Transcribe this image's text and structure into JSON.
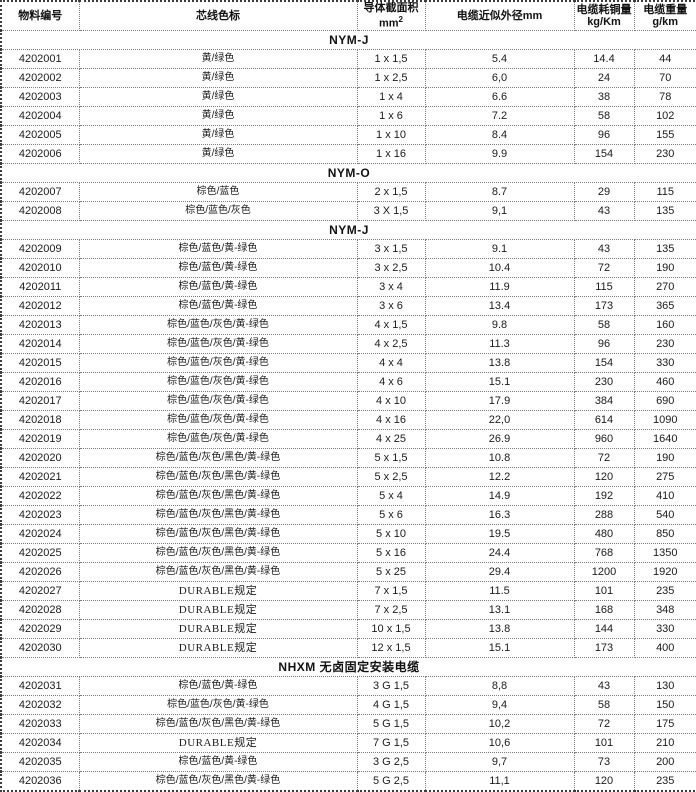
{
  "colors": {
    "background": "#ffffff",
    "text": "#1b1b1b",
    "border_outer": "#3d3d3d",
    "border_inner": "#7d7d7d"
  },
  "table": {
    "columns": [
      {
        "label": "物料编号"
      },
      {
        "label": "芯线色标"
      },
      {
        "label": "导体截面积",
        "label2": "mm",
        "sup": "2"
      },
      {
        "label": "电缆近似外径mm"
      },
      {
        "label": "电缆耗铜量",
        "label2": "kg/Km"
      },
      {
        "label": "电缆重量",
        "label2": "g/km"
      }
    ],
    "column_names": [
      "material-number",
      "core-color-code",
      "conductor-cross-section",
      "outer-diameter",
      "copper-consumption",
      "cable-weight"
    ],
    "sections": [
      {
        "title": "NYM-J",
        "rows": [
          [
            "4202001",
            "黄/绿色",
            "1 x 1,5",
            "5.4",
            "14.4",
            "44"
          ],
          [
            "4202002",
            "黄/绿色",
            "1 x 2,5",
            "6,0",
            "24",
            "70"
          ],
          [
            "4202003",
            "黄/绿色",
            "1 x 4",
            "6.6",
            "38",
            "78"
          ],
          [
            "4202004",
            "黄/绿色",
            "1 x 6",
            "7.2",
            "58",
            "102"
          ],
          [
            "4202005",
            "黄/绿色",
            "1 x 10",
            "8.4",
            "96",
            "155"
          ],
          [
            "4202006",
            "黄/绿色",
            "1 x 16",
            "9.9",
            "154",
            "230"
          ]
        ]
      },
      {
        "title": "NYM-O",
        "rows": [
          [
            "4202007",
            "棕色/蓝色",
            "2 x 1,5",
            "8.7",
            "29",
            "115"
          ],
          [
            "4202008",
            "棕色/蓝色/灰色",
            "3 X 1,5",
            "9,1",
            "43",
            "135"
          ]
        ]
      },
      {
        "title": "NYM-J",
        "rows": [
          [
            "4202009",
            "棕色/蓝色/黄-绿色",
            "3 x 1,5",
            "9.1",
            "43",
            "135"
          ],
          [
            "4202010",
            "棕色/蓝色/黄-绿色",
            "3 x 2,5",
            "10.4",
            "72",
            "190"
          ],
          [
            "4202011",
            "棕色/蓝色/黄-绿色",
            "3 x 4",
            "11.9",
            "115",
            "270"
          ],
          [
            "4202012",
            "棕色/蓝色/黄-绿色",
            "3 x 6",
            "13.4",
            "173",
            "365"
          ],
          [
            "4202013",
            "棕色/蓝色/灰色/黄-绿色",
            "4 x 1,5",
            "9.8",
            "58",
            "160"
          ],
          [
            "4202014",
            "棕色/蓝色/灰色/黄-绿色",
            "4 x 2,5",
            "11.3",
            "96",
            "230"
          ],
          [
            "4202015",
            "棕色/蓝色/灰色/黄-绿色",
            "4 x 4",
            "13.8",
            "154",
            "330"
          ],
          [
            "4202016",
            "棕色/蓝色/灰色/黄-绿色",
            "4 x 6",
            "15.1",
            "230",
            "460"
          ],
          [
            "4202017",
            "棕色/蓝色/灰色/黄-绿色",
            "4 x 10",
            "17.9",
            "384",
            "690"
          ],
          [
            "4202018",
            "棕色/蓝色/灰色/黄-绿色",
            "4 x 16",
            "22,0",
            "614",
            "1090"
          ],
          [
            "4202019",
            "棕色/蓝色/灰色/黄-绿色",
            "4 x 25",
            "26.9",
            "960",
            "1640"
          ],
          [
            "4202020",
            "棕色/蓝色/灰色/黑色/黄-绿色",
            "5 x 1,5",
            "10.8",
            "72",
            "190"
          ],
          [
            "4202021",
            "棕色/蓝色/灰色/黑色/黄-绿色",
            "5 x 2,5",
            "12.2",
            "120",
            "275"
          ],
          [
            "4202022",
            "棕色/蓝色/灰色/黑色/黄-绿色",
            "5 x 4",
            "14.9",
            "192",
            "410"
          ],
          [
            "4202023",
            "棕色/蓝色/灰色/黑色/黄-绿色",
            "5 x 6",
            "16.3",
            "288",
            "540"
          ],
          [
            "4202024",
            "棕色/蓝色/灰色/黑色/黄-绿色",
            "5 x 10",
            "19.5",
            "480",
            "850"
          ],
          [
            "4202025",
            "棕色/蓝色/灰色/黑色/黄-绿色",
            "5 x 16",
            "24.4",
            "768",
            "1350"
          ],
          [
            "4202026",
            "棕色/蓝色/灰色/黑色/黄-绿色",
            "5 x 25",
            "29.4",
            "1200",
            "1920"
          ],
          [
            "4202027",
            "DURABLE规定",
            "7 x 1,5",
            "11.5",
            "101",
            "235"
          ],
          [
            "4202028",
            "DURABLE规定",
            "7 x 2,5",
            "13.1",
            "168",
            "348"
          ],
          [
            "4202029",
            "DURABLE规定",
            "10 x 1,5",
            "13.8",
            "144",
            "330"
          ],
          [
            "4202030",
            "DURABLE规定",
            "12 x 1,5",
            "15.1",
            "173",
            "400"
          ]
        ]
      },
      {
        "title": "NHXM 无卤固定安装电缆",
        "rows": [
          [
            "4202031",
            "棕色/蓝色/黄-绿色",
            "3 G 1,5",
            "8,8",
            "43",
            "130"
          ],
          [
            "4202032",
            "棕色/蓝色/灰色/黄-绿色",
            "4 G 1,5",
            "9,4",
            "58",
            "150"
          ],
          [
            "4202033",
            "棕色/蓝色/灰色/黑色/黄-绿色",
            "5 G 1,5",
            "10,2",
            "72",
            "175"
          ],
          [
            "4202034",
            "DURABLE规定",
            "7 G 1,5",
            "10,6",
            "101",
            "210"
          ],
          [
            "4202035",
            "棕色/蓝色/黄-绿色",
            "3 G 2,5",
            "9,7",
            "73",
            "200"
          ],
          [
            "4202036",
            "棕色/蓝色/灰色/黑色/黄-绿色",
            "5 G 2,5",
            "11,1",
            "120",
            "235"
          ]
        ]
      }
    ]
  }
}
